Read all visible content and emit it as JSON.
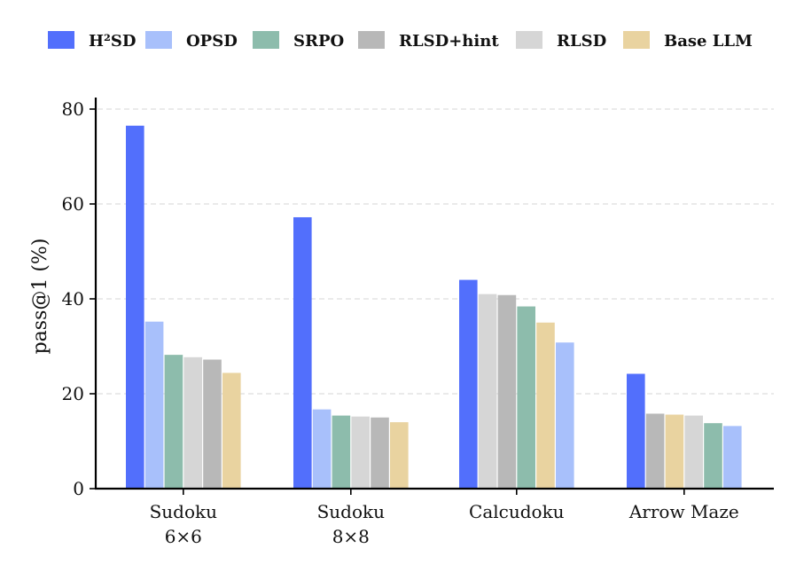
{
  "chart_data": {
    "type": "bar",
    "ylabel": "pass@1 (%)",
    "ylim": [
      0,
      80
    ],
    "yticks": [
      0,
      20,
      40,
      60,
      80
    ],
    "grid": "horizontal-dashed",
    "legend_position": "top",
    "legend": [
      {
        "name": "H²SD",
        "color": "#526ffc"
      },
      {
        "name": "OPSD",
        "color": "#a8c0fb"
      },
      {
        "name": "SRPO",
        "color": "#8dbcac"
      },
      {
        "name": "RLSD+hint",
        "color": "#b8b8b8"
      },
      {
        "name": "RLSD",
        "color": "#d6d6d6"
      },
      {
        "name": "Base LLM",
        "color": "#e9d3a0"
      }
    ],
    "groups": [
      {
        "category": [
          "Sudoku",
          "6×6"
        ],
        "bars": [
          {
            "series": "H²SD",
            "value": 76.5
          },
          {
            "series": "OPSD",
            "value": 35.2
          },
          {
            "series": "SRPO",
            "value": 28.2
          },
          {
            "series": "RLSD",
            "value": 27.7
          },
          {
            "series": "RLSD+hint",
            "value": 27.2
          },
          {
            "series": "Base LLM",
            "value": 24.4
          }
        ]
      },
      {
        "category": [
          "Sudoku",
          "8×8"
        ],
        "bars": [
          {
            "series": "H²SD",
            "value": 57.2
          },
          {
            "series": "OPSD",
            "value": 16.7
          },
          {
            "series": "SRPO",
            "value": 15.4
          },
          {
            "series": "RLSD",
            "value": 15.2
          },
          {
            "series": "RLSD+hint",
            "value": 15.0
          },
          {
            "series": "Base LLM",
            "value": 14.0
          }
        ]
      },
      {
        "category": [
          "Calcudoku"
        ],
        "bars": [
          {
            "series": "H²SD",
            "value": 44.0
          },
          {
            "series": "RLSD",
            "value": 41.0
          },
          {
            "series": "RLSD+hint",
            "value": 40.8
          },
          {
            "series": "SRPO",
            "value": 38.4
          },
          {
            "series": "Base LLM",
            "value": 35.0
          },
          {
            "series": "OPSD",
            "value": 30.8
          }
        ]
      },
      {
        "category": [
          "Arrow Maze"
        ],
        "bars": [
          {
            "series": "H²SD",
            "value": 24.2
          },
          {
            "series": "RLSD+hint",
            "value": 15.8
          },
          {
            "series": "Base LLM",
            "value": 15.6
          },
          {
            "series": "RLSD",
            "value": 15.4
          },
          {
            "series": "SRPO",
            "value": 13.8
          },
          {
            "series": "OPSD",
            "value": 13.2
          }
        ]
      }
    ]
  }
}
